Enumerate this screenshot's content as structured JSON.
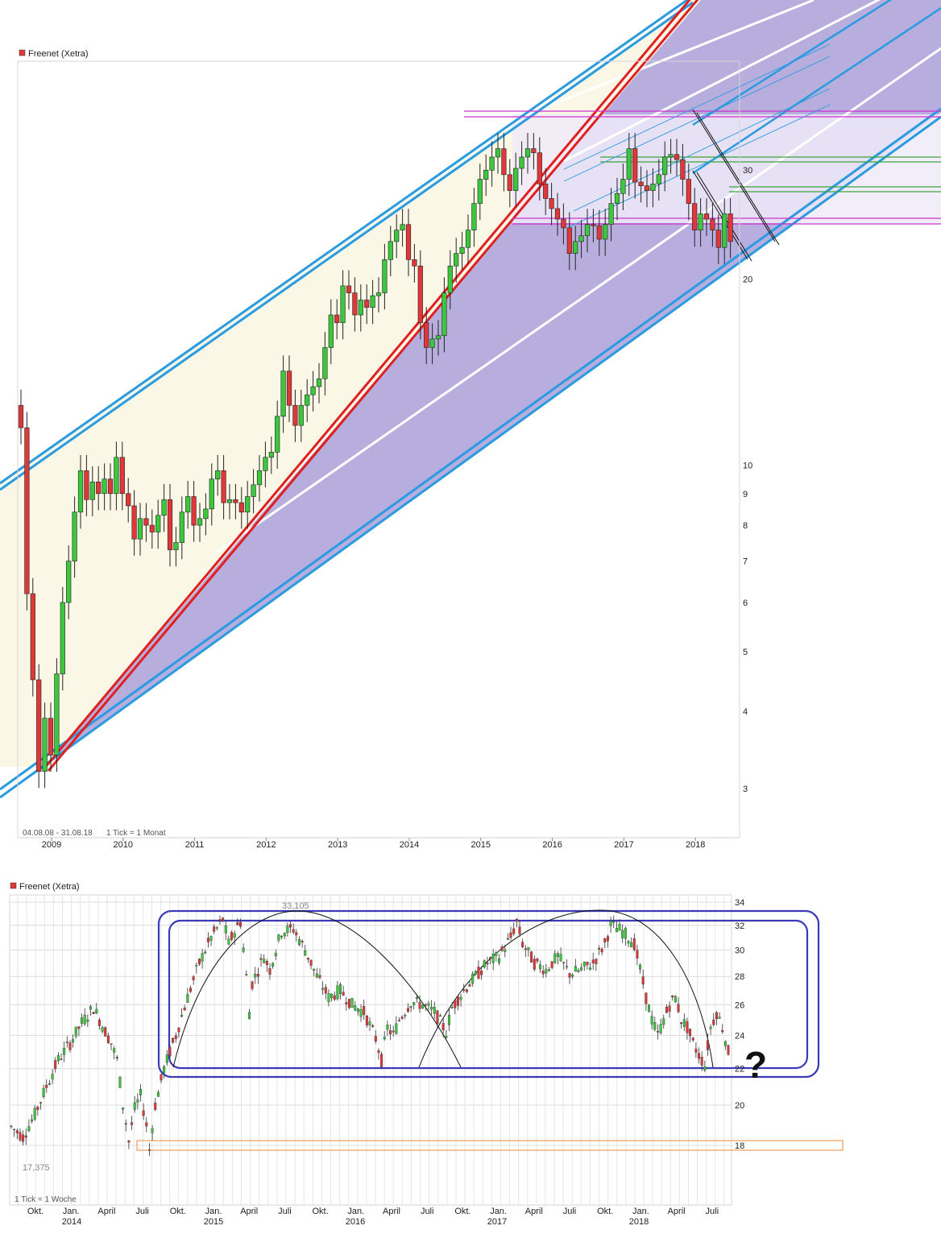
{
  "colors": {
    "up": "#3cc83c",
    "down": "#e03838",
    "channel": "#2a9be0",
    "trend": "#e02020",
    "fill_purple": "#b3aadd",
    "fill_cream": "#faf7e6",
    "magenta": "#cc33cc",
    "green_line": "#3aa63a",
    "orange": "#e88a3a",
    "rect": "#3a3ab8"
  },
  "chart_data": [
    {
      "type": "candlestick",
      "title": "Freenet (Xetra)",
      "period_text": "04.08.08 - 31.08.18",
      "tick_text": "1 Tick = 1 Monat",
      "scale": "log",
      "ylim": [
        2.5,
        45
      ],
      "y_ticks": [
        "3",
        "4",
        "5",
        "6",
        "7",
        "8",
        "9",
        "10",
        "20",
        "30"
      ],
      "x_ticks": [
        "2009",
        "2010",
        "2011",
        "2012",
        "2013",
        "2014",
        "2015",
        "2016",
        "2017",
        "2018"
      ],
      "closes": [
        11.5,
        6.2,
        4.5,
        3.2,
        3.9,
        3.4,
        4.6,
        6.0,
        7.0,
        8.4,
        9.8,
        8.8,
        9.4,
        9.0,
        9.5,
        9.0,
        10.3,
        9.0,
        8.6,
        7.6,
        8.2,
        8.0,
        7.8,
        8.3,
        8.8,
        7.3,
        7.5,
        8.4,
        8.9,
        8.0,
        8.2,
        8.5,
        9.5,
        9.8,
        8.7,
        8.8,
        8.7,
        8.4,
        8.9,
        9.3,
        9.8,
        10.3,
        10.5,
        12.0,
        14.2,
        12.5,
        11.6,
        12.5,
        13.0,
        13.4,
        13.8,
        15.5,
        17.5,
        17.0,
        19.5,
        19.0,
        17.5,
        18.5,
        18.0,
        18.8,
        19.0,
        21.5,
        23.0,
        24.0,
        24.5,
        21.5,
        21.0,
        17.0,
        15.5,
        16.0,
        16.2,
        19.0,
        21.0,
        22.0,
        22.5,
        24.0,
        26.5,
        29.0,
        30.0,
        31.5,
        32.5,
        29.5,
        27.8,
        30.2,
        31.5,
        32.5,
        32.0,
        28.5,
        27.0,
        26.0,
        25.0,
        24.2,
        22.0,
        23.0,
        23.5,
        24.5,
        24.4,
        23.2,
        24.5,
        26.5,
        27.5,
        29.0,
        32.5,
        28.7,
        28.3,
        27.8,
        28.5,
        29.5,
        31.5,
        31.8,
        31.2,
        29.0,
        26.5,
        24.0,
        25.5,
        25.0,
        24.0,
        22.5,
        25.5,
        23.0
      ],
      "ohlc_note": "monthly closes approximated"
    },
    {
      "type": "candlestick",
      "title": "Freenet (Xetra)",
      "tick_text": "1 Tick = 1 Woche",
      "scale": "log",
      "y_ticks": [
        "18",
        "20",
        "22",
        "24",
        "26",
        "28",
        "30",
        "32",
        "34"
      ],
      "x_ticks": [
        "Okt.",
        "Jan.",
        "April",
        "Juli",
        "Okt.",
        "Jan.",
        "April",
        "Juli",
        "Okt.",
        "Jan.",
        "April",
        "Juli",
        "Okt.",
        "Jan.",
        "April",
        "Juli",
        "Okt.",
        "Jan.",
        "April",
        "Juli"
      ],
      "x_years": [
        "2014",
        "2015",
        "2016",
        "2017",
        "2018"
      ],
      "high_label": "33,105",
      "low_label": "17,375",
      "question_mark": "?",
      "weekly_path": [
        [
          0,
          18.9
        ],
        [
          4,
          18.4
        ],
        [
          8,
          19.5
        ],
        [
          12,
          21.0
        ],
        [
          16,
          22.5
        ],
        [
          20,
          23.5
        ],
        [
          24,
          24.8
        ],
        [
          28,
          25.8
        ],
        [
          30,
          25.0
        ],
        [
          34,
          23.5
        ],
        [
          36,
          22.5
        ],
        [
          38,
          20.0
        ],
        [
          40,
          18.2
        ],
        [
          42,
          19.8
        ],
        [
          44,
          20.5
        ],
        [
          46,
          19.0
        ],
        [
          47,
          17.8
        ],
        [
          49,
          20.0
        ],
        [
          52,
          22.0
        ],
        [
          56,
          24.0
        ],
        [
          60,
          26.5
        ],
        [
          64,
          29.0
        ],
        [
          68,
          31.0
        ],
        [
          72,
          32.5
        ],
        [
          74,
          30.5
        ],
        [
          76,
          31.5
        ],
        [
          78,
          32.3
        ],
        [
          80,
          28.0
        ],
        [
          81,
          25.5
        ],
        [
          82,
          27.5
        ],
        [
          86,
          29.5
        ],
        [
          88,
          28.5
        ],
        [
          92,
          31.5
        ],
        [
          96,
          31.7
        ],
        [
          100,
          30.0
        ],
        [
          104,
          28.0
        ],
        [
          108,
          26.5
        ],
        [
          112,
          27.0
        ],
        [
          116,
          26.0
        ],
        [
          120,
          25.5
        ],
        [
          124,
          23.8
        ],
        [
          126,
          22.5
        ],
        [
          128,
          24.5
        ],
        [
          130,
          24.0
        ],
        [
          132,
          25.0
        ],
        [
          136,
          26.2
        ],
        [
          140,
          26.0
        ],
        [
          144,
          25.5
        ],
        [
          148,
          24.2
        ],
        [
          150,
          25.8
        ],
        [
          154,
          27.0
        ],
        [
          158,
          28.0
        ],
        [
          162,
          29.0
        ],
        [
          166,
          29.5
        ],
        [
          170,
          31.0
        ],
        [
          172,
          32.3
        ],
        [
          174,
          30.5
        ],
        [
          178,
          29.0
        ],
        [
          182,
          28.5
        ],
        [
          186,
          29.5
        ],
        [
          190,
          28.2
        ],
        [
          194,
          28.5
        ],
        [
          198,
          29.0
        ],
        [
          202,
          30.5
        ],
        [
          204,
          32.0
        ],
        [
          208,
          31.5
        ],
        [
          212,
          30.5
        ],
        [
          214,
          28.5
        ],
        [
          216,
          26.5
        ],
        [
          218,
          25.0
        ],
        [
          220,
          24.0
        ],
        [
          222,
          25.0
        ],
        [
          224,
          26.0
        ],
        [
          226,
          26.5
        ],
        [
          228,
          25.0
        ],
        [
          230,
          24.5
        ],
        [
          232,
          23.5
        ],
        [
          234,
          22.8
        ],
        [
          236,
          22.2
        ],
        [
          238,
          24.5
        ],
        [
          240,
          25.5
        ],
        [
          242,
          24.5
        ],
        [
          244,
          23.0
        ]
      ]
    }
  ]
}
